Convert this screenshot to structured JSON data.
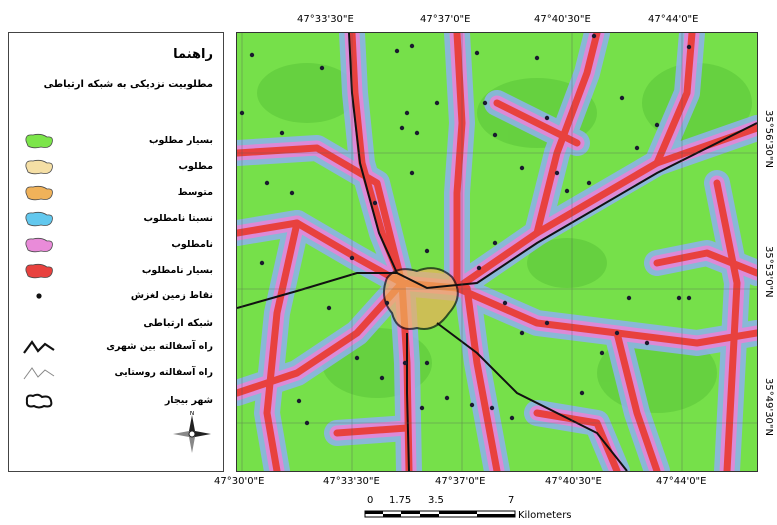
{
  "legend": {
    "title": "راهنما",
    "subtitle": "مطلوبیت نزدیکی به شبکه ارتباطی",
    "classes": [
      {
        "label": "بسیار مطلوب",
        "color": "#7CE54A"
      },
      {
        "label": "مطلوب",
        "color": "#F5DFA5"
      },
      {
        "label": "متوسط",
        "color": "#F0B25A"
      },
      {
        "label": "نسبتا نامطلوب",
        "color": "#62C8EE"
      },
      {
        "label": "نامطلوب",
        "color": "#E98BD9"
      },
      {
        "label": "بسیار نامطلوب",
        "color": "#E8413E"
      }
    ],
    "points_label": "نقاط زمین لغزش",
    "network_title": "شبکه ارتباطی",
    "network": [
      {
        "label": "راه آسفالته بین شهری",
        "icon": "highway-line-icon"
      },
      {
        "label": "راه آسفالته روستایی",
        "icon": "rural-road-line-icon"
      },
      {
        "label": "شهر بیجار",
        "icon": "city-boundary-icon"
      }
    ],
    "north_arrow": "N",
    "north_icon": "north-arrow-icon"
  },
  "axes": {
    "top": [
      "47°33'30\"E",
      "47°37'0\"E",
      "47°40'30\"E",
      "47°44'0\"E"
    ],
    "bottom": [
      "47°30'0\"E",
      "47°33'30\"E",
      "47°37'0\"E",
      "47°40'30\"E",
      "47°44'0\"E"
    ],
    "right": [
      "35°56'30\"N",
      "35°53'0\"N",
      "35°49'30\"N"
    ]
  },
  "scale": {
    "labels": [
      "0",
      "1.75",
      "3.5",
      "7"
    ],
    "unit": "Kilometers"
  },
  "colors": {
    "green": "#7CE54A",
    "red": "#E8413E",
    "blue": "#7FA8E8",
    "pink": "#E98BD9"
  }
}
